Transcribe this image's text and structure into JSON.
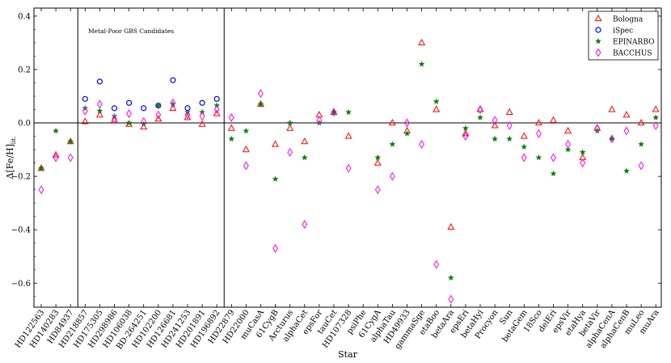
{
  "chart_data": {
    "type": "scatter",
    "title": "",
    "xlabel": "Star",
    "ylabel": "Δ[Fe/H]",
    "ylabel_sub": "lit.",
    "ylim": [
      -0.69,
      0.43
    ],
    "yticks": [
      -0.6,
      -0.4,
      -0.2,
      0.0,
      0.2,
      0.4
    ],
    "ytick_labels": [
      "−0.6",
      "−0.4",
      "−0.2",
      "0.0",
      "0.2",
      "0.4"
    ],
    "annotation": "Metal-Poor GBS Candidates",
    "separators_after_index": [
      2,
      12
    ],
    "zero_line": 0.0,
    "legend_position": "top-right",
    "categories": [
      "HD122563",
      "HD140283",
      "HD84937",
      "HD218857",
      "HD175305",
      "HD298986",
      "HD106038",
      "BD-264251",
      "HD102200",
      "HD126681",
      "HD241253",
      "HD201891",
      "HD196892",
      "HD22879",
      "HD22000",
      "muCasA",
      "61CygB",
      "Arcturus",
      "alphaCet",
      "epsFor",
      "tauCet",
      "HD107328",
      "psiPhe",
      "61CygA",
      "alphaTau",
      "HD49933",
      "gammaSge",
      "etaBoo",
      "betaAra",
      "epsEri",
      "betaHyi",
      "Procyon",
      "Sun",
      "betaGem",
      "18Sco",
      "delEri",
      "epsVir",
      "etaHya",
      "betaVir",
      "alphaCenA",
      "alphaCenB",
      "muLeo",
      "muAra"
    ],
    "series": [
      {
        "name": "Bologna",
        "marker": "triangle",
        "color": "#ff0000",
        "values": [
          -0.17,
          -0.12,
          -0.07,
          0.005,
          0.03,
          0.01,
          -0.005,
          -0.015,
          0.015,
          0.055,
          0.02,
          -0.005,
          0.035,
          -0.02,
          -0.1,
          0.07,
          -0.08,
          -0.02,
          -0.07,
          0.03,
          0.04,
          -0.05,
          null,
          -0.15,
          0.0,
          -0.03,
          0.3,
          0.05,
          -0.39,
          -0.04,
          0.05,
          -0.01,
          0.04,
          -0.05,
          0.0,
          0.01,
          -0.03,
          -0.13,
          -0.02,
          0.05,
          0.03,
          0.0,
          0.05
        ]
      },
      {
        "name": "iSpec",
        "marker": "circle",
        "color": "#0000ff",
        "values": [
          null,
          null,
          null,
          0.09,
          0.155,
          0.055,
          0.075,
          0.055,
          0.065,
          0.16,
          0.055,
          0.075,
          0.09,
          null,
          null,
          null,
          null,
          null,
          null,
          null,
          null,
          null,
          null,
          null,
          null,
          null,
          null,
          null,
          null,
          null,
          null,
          null,
          null,
          null,
          null,
          null,
          null,
          null,
          null,
          null,
          null,
          null,
          null
        ]
      },
      {
        "name": "EPINARBO",
        "marker": "star",
        "color": "#008000",
        "values": [
          -0.17,
          -0.03,
          -0.07,
          0.055,
          0.045,
          0.025,
          0.0,
          -0.005,
          0.065,
          0.07,
          0.04,
          0.04,
          0.065,
          -0.06,
          -0.03,
          0.07,
          -0.21,
          0.0,
          -0.13,
          0.0,
          0.04,
          0.04,
          null,
          -0.13,
          -0.08,
          -0.04,
          0.22,
          0.08,
          -0.58,
          -0.02,
          0.02,
          -0.06,
          -0.06,
          -0.09,
          -0.13,
          -0.19,
          -0.1,
          -0.11,
          -0.03,
          -0.06,
          -0.18,
          -0.08,
          0.02
        ]
      },
      {
        "name": "BACCHUS",
        "marker": "diamond",
        "color": "#ff00ff",
        "values": [
          -0.25,
          -0.13,
          -0.13,
          0.045,
          0.07,
          0.015,
          0.035,
          0.005,
          0.03,
          0.075,
          0.03,
          0.025,
          0.05,
          0.02,
          -0.16,
          0.11,
          -0.47,
          -0.11,
          -0.38,
          0.01,
          0.04,
          -0.17,
          null,
          -0.25,
          -0.2,
          0.0,
          -0.08,
          -0.53,
          -0.66,
          -0.05,
          0.05,
          0.01,
          -0.01,
          -0.13,
          -0.04,
          -0.13,
          -0.08,
          -0.15,
          -0.02,
          -0.06,
          -0.03,
          -0.16,
          -0.01
        ]
      }
    ]
  }
}
